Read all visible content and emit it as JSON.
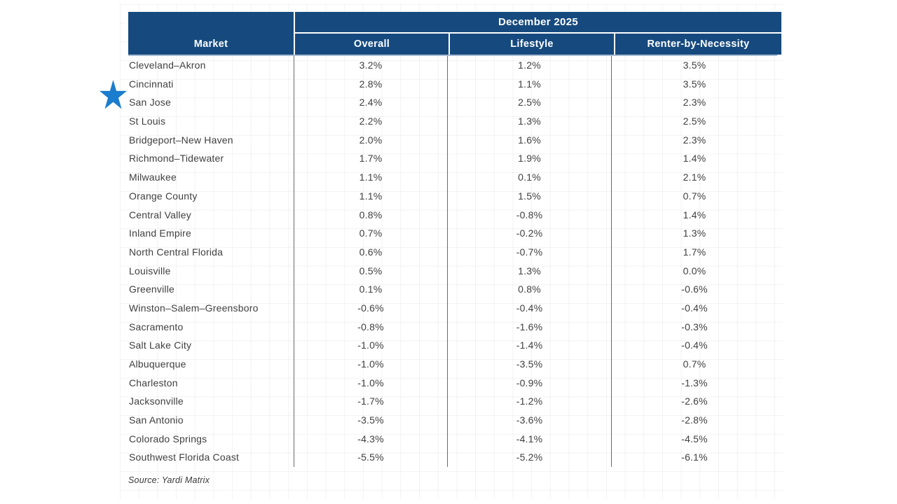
{
  "colors": {
    "header_bg": "#164A7E",
    "star_blue": "#1B7DCE",
    "text_color": "#3F3F3F",
    "separator": "#6A6A6A"
  },
  "chart_data": {
    "type": "table",
    "period_header": "December 2025",
    "columns": [
      "Market",
      "Overall",
      "Lifestyle",
      "Renter-by-Necessity"
    ],
    "rows": [
      [
        "Cleveland–Akron",
        "3.2%",
        "1.2%",
        "3.5%"
      ],
      [
        "Cincinnati",
        "2.8%",
        "1.1%",
        "3.5%"
      ],
      [
        "San Jose",
        "2.4%",
        "2.5%",
        "2.3%"
      ],
      [
        "St Louis",
        "2.2%",
        "1.3%",
        "2.5%"
      ],
      [
        "Bridgeport–New Haven",
        "2.0%",
        "1.6%",
        "2.3%"
      ],
      [
        "Richmond–Tidewater",
        "1.7%",
        "1.9%",
        "1.4%"
      ],
      [
        "Milwaukee",
        "1.1%",
        "0.1%",
        "2.1%"
      ],
      [
        "Orange County",
        "1.1%",
        "1.5%",
        "0.7%"
      ],
      [
        "Central Valley",
        "0.8%",
        "-0.8%",
        "1.4%"
      ],
      [
        "Inland Empire",
        "0.7%",
        "-0.2%",
        "1.3%"
      ],
      [
        "North Central Florida",
        "0.6%",
        "-0.7%",
        "1.7%"
      ],
      [
        "Louisville",
        "0.5%",
        "1.3%",
        "0.0%"
      ],
      [
        "Greenville",
        "0.1%",
        "0.8%",
        "-0.6%"
      ],
      [
        "Winston–Salem–Greensboro",
        "-0.6%",
        "-0.4%",
        "-0.4%"
      ],
      [
        "Sacramento",
        "-0.8%",
        "-1.6%",
        "-0.3%"
      ],
      [
        "Salt Lake City",
        "-1.0%",
        "-1.4%",
        "-0.4%"
      ],
      [
        "Albuquerque",
        "-1.0%",
        "-3.5%",
        "0.7%"
      ],
      [
        "Charleston",
        "-1.0%",
        "-0.9%",
        "-1.3%"
      ],
      [
        "Jacksonville",
        "-1.7%",
        "-1.2%",
        "-2.6%"
      ],
      [
        "San Antonio",
        "-3.5%",
        "-3.6%",
        "-2.8%"
      ],
      [
        "Colorado Springs",
        "-4.3%",
        "-4.1%",
        "-4.5%"
      ],
      [
        "Southwest Florida Coast",
        "-5.5%",
        "-5.2%",
        "-6.1%"
      ]
    ],
    "starred_market": "San Jose",
    "source": "Source: Yardi Matrix"
  }
}
